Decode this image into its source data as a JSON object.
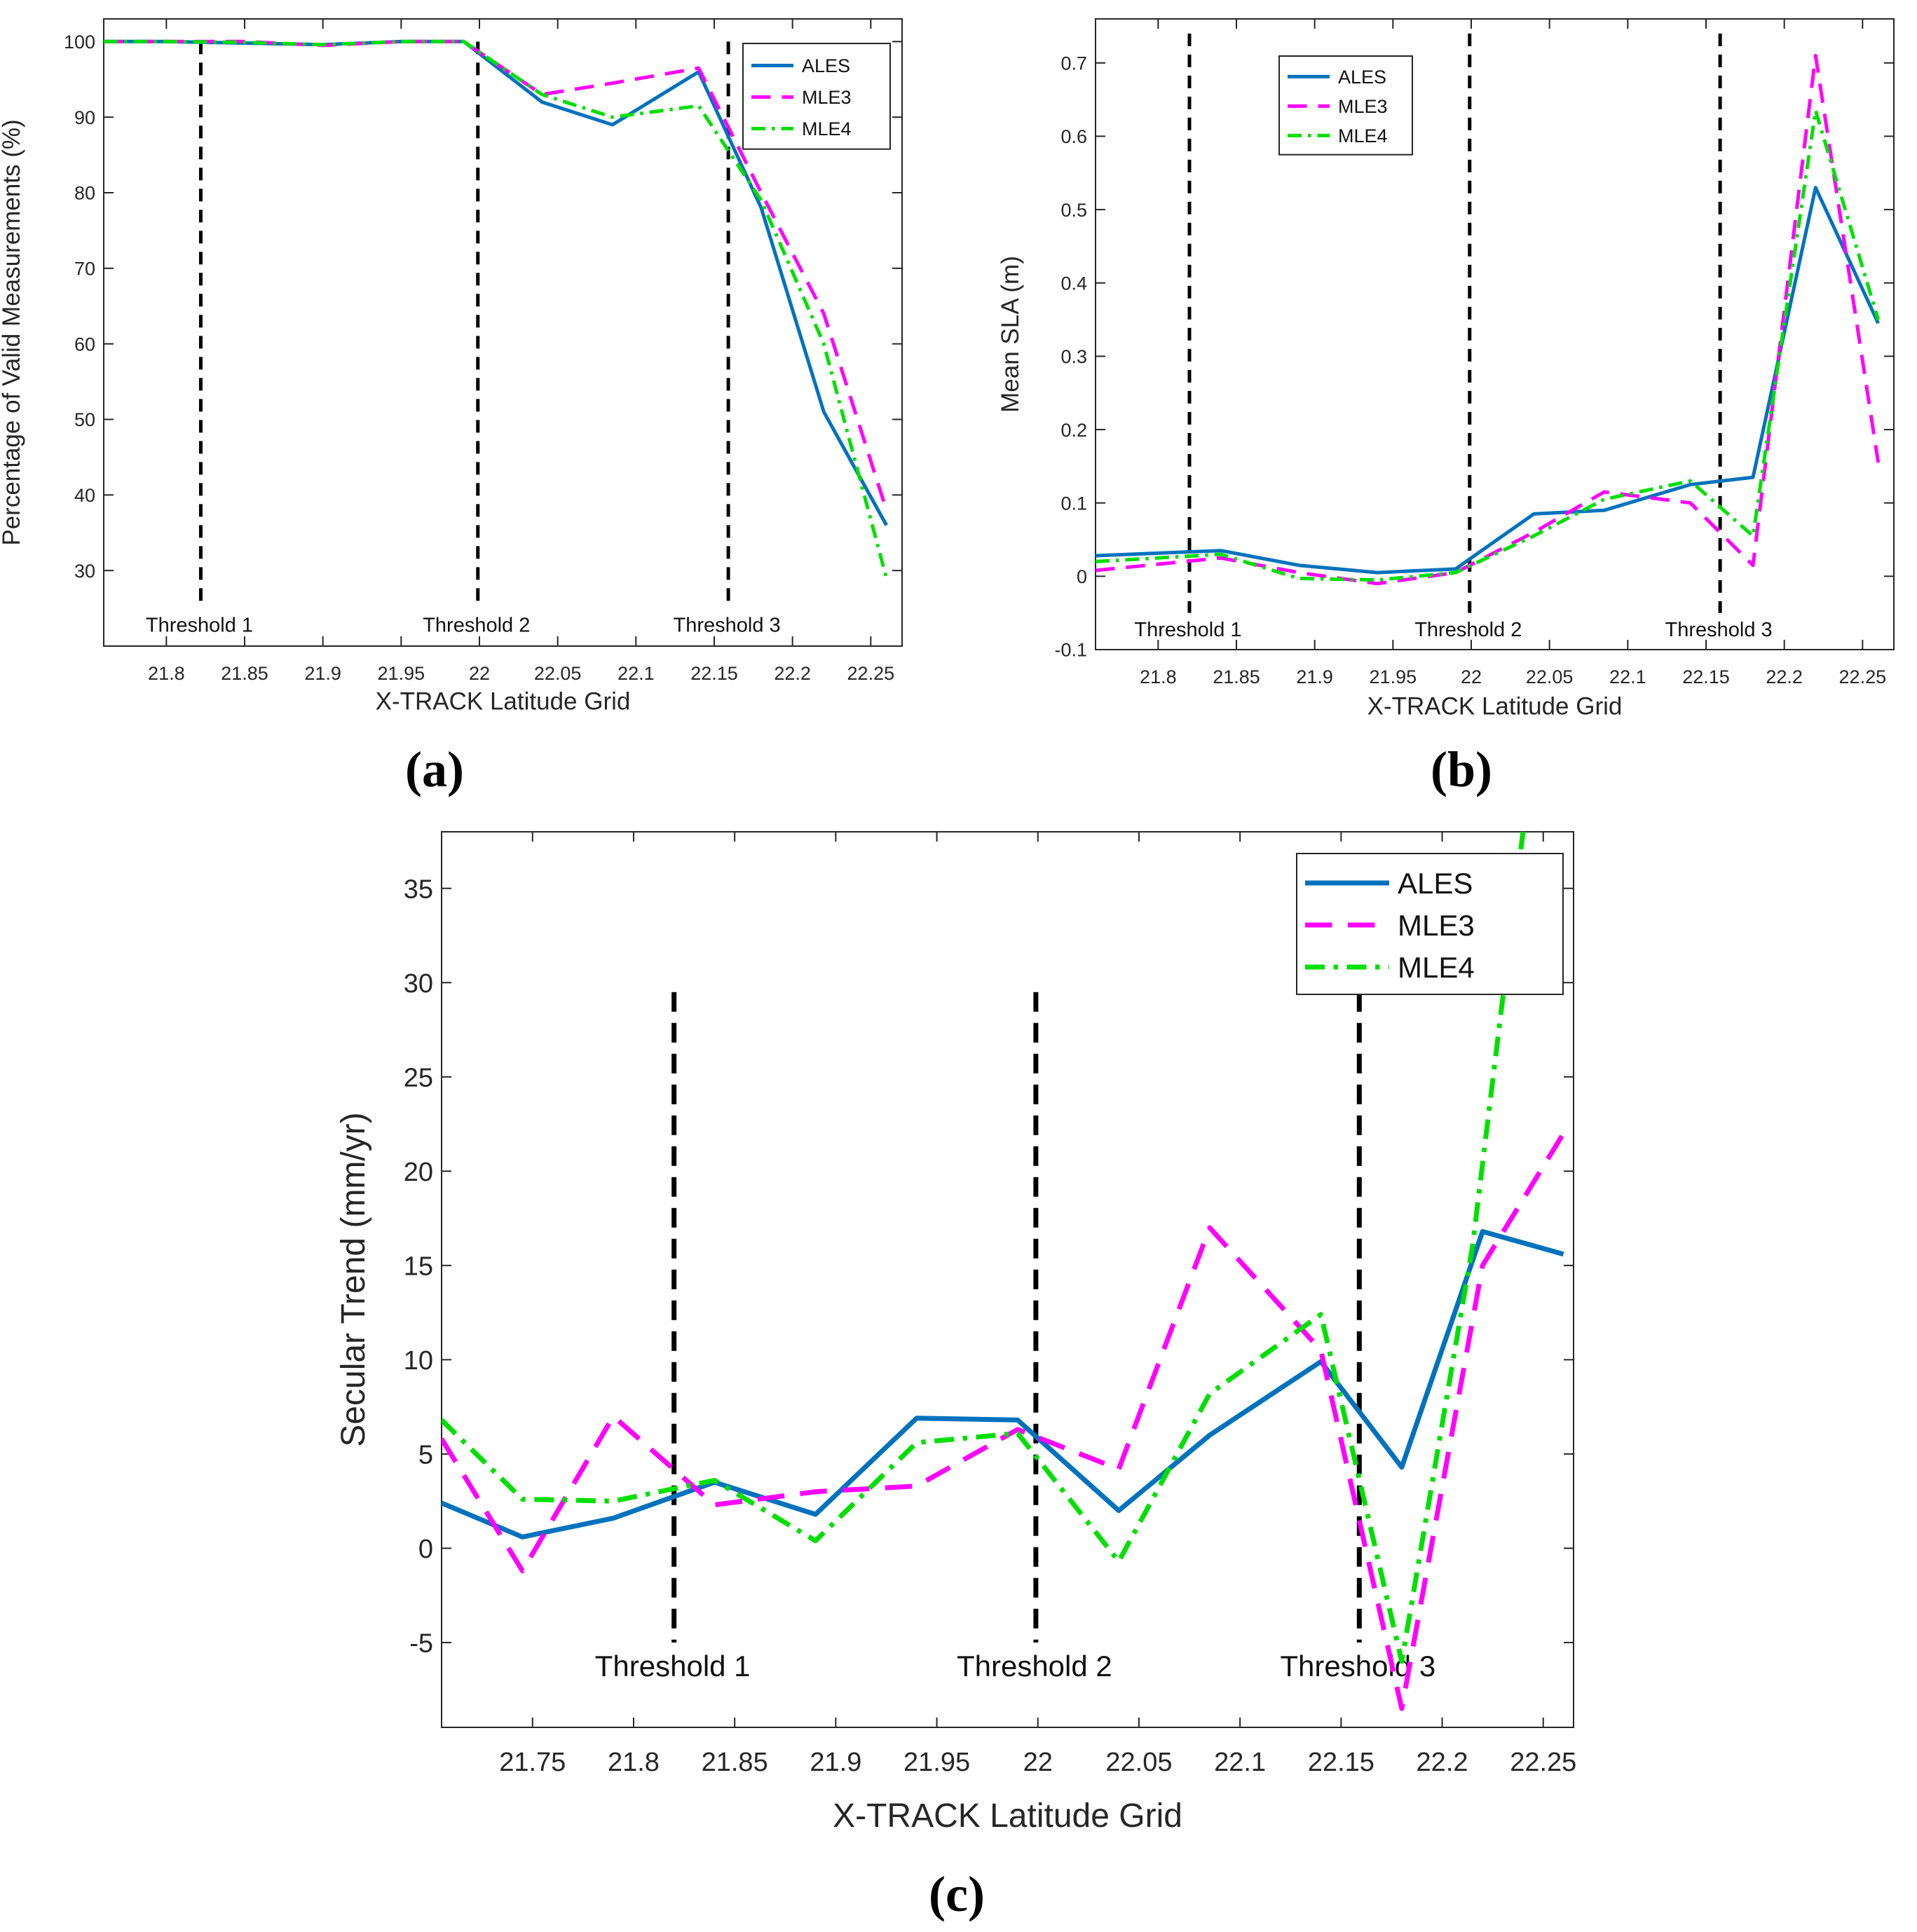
{
  "colors": {
    "ALES": "#0072BD",
    "MLE3": "#FF00FF",
    "MLE4": "#00E000",
    "threshold": "#000000",
    "axes": "#262626"
  },
  "chart_data": [
    {
      "id": "a",
      "panel_label": "(a)",
      "type": "line",
      "xlabel": "X-TRACK Latitude Grid",
      "ylabel": "Percentage of Valid Measurements (%)",
      "xlim": [
        21.76,
        22.27
      ],
      "ylim": [
        20,
        103
      ],
      "xticks": [
        21.8,
        21.85,
        21.9,
        21.95,
        22,
        22.05,
        22.1,
        22.15,
        22.2,
        22.25
      ],
      "xtick_labels": [
        "21.8",
        "21.85",
        "21.9",
        "21.95",
        "22",
        "22.05",
        "22.1",
        "22.15",
        "22.2",
        "22.25"
      ],
      "yticks": [
        30,
        40,
        50,
        60,
        70,
        80,
        90,
        100
      ],
      "ytick_labels": [
        "30",
        "40",
        "50",
        "60",
        "70",
        "80",
        "90",
        "100"
      ],
      "legend": [
        "ALES",
        "MLE3",
        "MLE4"
      ],
      "legend_position": "top-right",
      "thresholds": [
        {
          "x": 21.822,
          "label": "Threshold 1",
          "y_top": 100,
          "y_bottom": 25
        },
        {
          "x": 21.999,
          "label": "Threshold 2",
          "y_top": 100,
          "y_bottom": 25
        },
        {
          "x": 22.159,
          "label": "Threshold 3",
          "y_top": 100,
          "y_bottom": 25
        }
      ],
      "series": [
        {
          "name": "ALES",
          "style": "solid",
          "x": [
            21.76,
            21.8,
            21.85,
            21.9,
            21.95,
            21.99,
            22.04,
            22.085,
            22.14,
            22.18,
            22.22,
            22.26
          ],
          "y": [
            100,
            100,
            99.8,
            99.6,
            100,
            100,
            92,
            89,
            96,
            78,
            51,
            36
          ]
        },
        {
          "name": "MLE3",
          "style": "dash",
          "x": [
            21.76,
            21.8,
            21.85,
            21.9,
            21.95,
            21.99,
            22.04,
            22.085,
            22.14,
            22.18,
            22.22,
            22.26
          ],
          "y": [
            100,
            100,
            100,
            99.5,
            100,
            100,
            93,
            94.5,
            96.5,
            80,
            64,
            38
          ]
        },
        {
          "name": "MLE4",
          "style": "dashdot",
          "x": [
            21.76,
            21.8,
            21.85,
            21.9,
            21.95,
            21.99,
            22.04,
            22.085,
            22.14,
            22.18,
            22.22,
            22.26
          ],
          "y": [
            100,
            100,
            99.9,
            99.6,
            100,
            100,
            93,
            90,
            91.5,
            79,
            60,
            29
          ]
        }
      ]
    },
    {
      "id": "b",
      "panel_label": "(b)",
      "type": "line",
      "xlabel": "X-TRACK Latitude Grid",
      "ylabel": "Mean SLA (m)",
      "xlim": [
        21.76,
        22.27
      ],
      "ylim": [
        -0.1,
        0.76
      ],
      "xticks": [
        21.8,
        21.85,
        21.9,
        21.95,
        22,
        22.05,
        22.1,
        22.15,
        22.2,
        22.25
      ],
      "xtick_labels": [
        "21.8",
        "21.85",
        "21.9",
        "21.95",
        "22",
        "22.05",
        "22.1",
        "22.15",
        "22.2",
        "22.25"
      ],
      "yticks": [
        -0.1,
        0,
        0.1,
        0.2,
        0.3,
        0.4,
        0.5,
        0.6,
        0.7
      ],
      "ytick_labels": [
        "-0.1",
        "0",
        "0.1",
        "0.2",
        "0.3",
        "0.4",
        "0.5",
        "0.6",
        "0.7"
      ],
      "legend": [
        "ALES",
        "MLE3",
        "MLE4"
      ],
      "legend_position": "top-left",
      "thresholds": [
        {
          "x": 21.82,
          "label": "Threshold 1",
          "y_top": 0.74,
          "y_bottom": -0.05
        },
        {
          "x": 21.999,
          "label": "Threshold 2",
          "y_top": 0.74,
          "y_bottom": -0.05
        },
        {
          "x": 22.159,
          "label": "Threshold 3",
          "y_top": 0.74,
          "y_bottom": -0.05
        }
      ],
      "series": [
        {
          "name": "ALES",
          "style": "solid",
          "x": [
            21.76,
            21.84,
            21.89,
            21.94,
            21.99,
            22.04,
            22.085,
            22.14,
            22.18,
            22.22,
            22.26
          ],
          "y": [
            0.028,
            0.035,
            0.015,
            0.005,
            0.01,
            0.085,
            0.09,
            0.125,
            0.135,
            0.53,
            0.345
          ]
        },
        {
          "name": "MLE3",
          "style": "dash",
          "x": [
            21.76,
            21.84,
            21.89,
            21.94,
            21.99,
            22.04,
            22.085,
            22.14,
            22.18,
            22.22,
            22.26
          ],
          "y": [
            0.008,
            0.025,
            0.005,
            -0.01,
            0.005,
            0.06,
            0.115,
            0.1,
            0.015,
            0.71,
            0.155
          ]
        },
        {
          "name": "MLE4",
          "style": "dashdot",
          "x": [
            21.76,
            21.84,
            21.89,
            21.94,
            21.99,
            22.04,
            22.085,
            22.14,
            22.18,
            22.22,
            22.26
          ],
          "y": [
            0.02,
            0.03,
            -0.003,
            -0.005,
            0.005,
            0.055,
            0.105,
            0.13,
            0.055,
            0.635,
            0.35
          ]
        }
      ]
    },
    {
      "id": "c",
      "panel_label": "(c)",
      "type": "line",
      "xlabel": "X-TRACK Latitude Grid",
      "ylabel": "Secular Trend (mm/yr)",
      "xlim": [
        21.705,
        22.265
      ],
      "ylim": [
        -9.5,
        38
      ],
      "xticks": [
        21.75,
        21.8,
        21.85,
        21.9,
        21.95,
        22,
        22.05,
        22.1,
        22.15,
        22.2,
        22.25
      ],
      "xtick_labels": [
        "21.75",
        "21.8",
        "21.85",
        "21.9",
        "21.95",
        "22",
        "22.05",
        "22.1",
        "22.15",
        "22.2",
        "22.25"
      ],
      "yticks": [
        -5,
        0,
        5,
        10,
        15,
        20,
        25,
        30,
        35
      ],
      "ytick_labels": [
        "-5",
        "0",
        "5",
        "10",
        "15",
        "20",
        "25",
        "30",
        "35"
      ],
      "legend": [
        "ALES",
        "MLE3",
        "MLE4"
      ],
      "legend_position": "top-right",
      "thresholds": [
        {
          "x": 21.82,
          "label": "Threshold 1",
          "y_top": 29.5,
          "y_bottom": -5
        },
        {
          "x": 21.999,
          "label": "Threshold 2",
          "y_top": 29.5,
          "y_bottom": -5
        },
        {
          "x": 22.159,
          "label": "Threshold 3",
          "y_top": 29.5,
          "y_bottom": -5
        }
      ],
      "series": [
        {
          "name": "ALES",
          "style": "solid",
          "x": [
            21.705,
            21.745,
            21.79,
            21.84,
            21.89,
            21.94,
            21.99,
            22.04,
            22.085,
            22.14,
            22.18,
            22.22,
            22.26
          ],
          "y": [
            2.4,
            0.6,
            1.6,
            3.5,
            1.8,
            6.9,
            6.8,
            2.0,
            6.0,
            9.9,
            4.3,
            16.8,
            15.6
          ]
        },
        {
          "name": "MLE3",
          "style": "dash",
          "x": [
            21.705,
            21.745,
            21.79,
            21.84,
            21.89,
            21.94,
            21.99,
            22.04,
            22.085,
            22.14,
            22.18,
            22.22,
            22.26
          ],
          "y": [
            5.8,
            -1.2,
            7.0,
            2.3,
            3.0,
            3.3,
            6.3,
            4.2,
            17.0,
            10.5,
            -8.5,
            15.0,
            22.0
          ]
        },
        {
          "name": "MLE4",
          "style": "dashdot",
          "x": [
            21.705,
            21.745,
            21.79,
            21.84,
            21.89,
            21.94,
            21.99,
            22.04,
            22.085,
            22.14,
            22.18,
            22.215,
            22.24
          ],
          "y": [
            6.8,
            2.6,
            2.5,
            3.6,
            0.4,
            5.6,
            6.1,
            -0.7,
            8.2,
            12.4,
            -6.0,
            16.0,
            38
          ]
        }
      ]
    }
  ]
}
